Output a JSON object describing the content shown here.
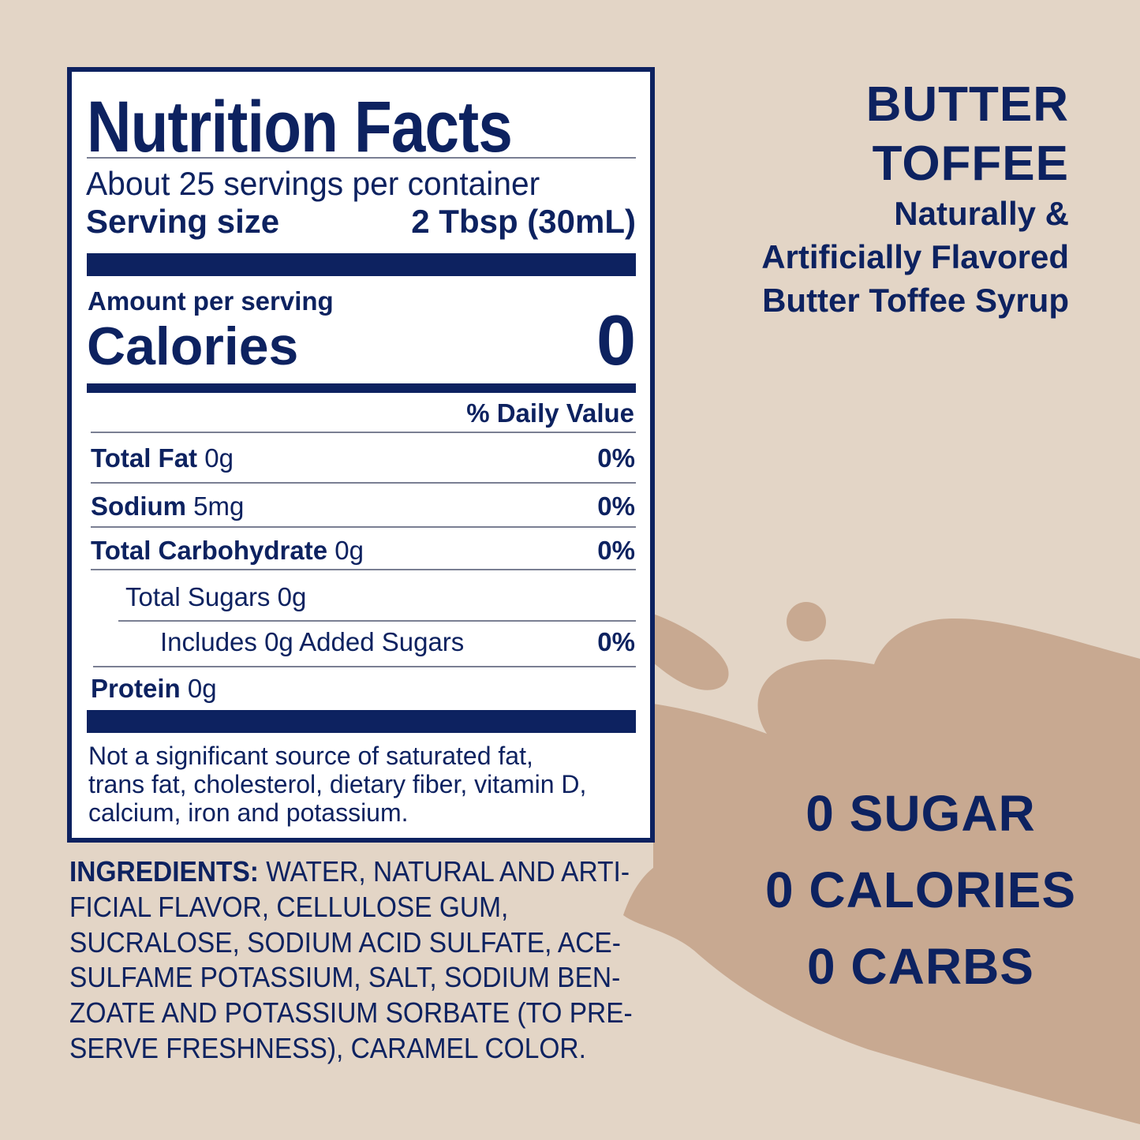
{
  "colors": {
    "background": "#e3d5c6",
    "splash": "#c8a991",
    "navy": "#0d2260"
  },
  "label": {
    "title": "Nutrition Facts",
    "servings": "About 25 servings per container",
    "serving_size_label": "Serving size",
    "serving_size_value": "2 Tbsp (30mL)",
    "amount_per_serving": "Amount per serving",
    "calories_label": "Calories",
    "calories_value": "0",
    "daily_value_header": "% Daily Value",
    "rows": [
      {
        "name": "Total Fat",
        "amount": "0g",
        "dv": "0%"
      },
      {
        "name": "Sodium",
        "amount": "5mg",
        "dv": "0%"
      },
      {
        "name": "Total Carbohydrate",
        "amount": "0g",
        "dv": "0%"
      },
      {
        "name": "",
        "amount": "Total Sugars 0g",
        "dv": ""
      },
      {
        "name": "",
        "amount": "Includes 0g Added Sugars",
        "dv": "0%"
      },
      {
        "name": "Protein",
        "amount": "0g",
        "dv": ""
      }
    ],
    "footnote": [
      "Not a significant source of saturated fat,",
      "trans fat, cholesterol, dietary fiber, vitamin D,",
      "calcium, iron and potassium."
    ]
  },
  "ingredients": {
    "label": "INGREDIENTS:",
    "lines": [
      " WATER, NATURAL AND ARTI-",
      "FICIAL FLAVOR, CELLULOSE GUM,",
      "SUCRALOSE, SODIUM ACID SULFATE, ACE-",
      "SULFAME POTASSIUM,  SALT, SODIUM BEN-",
      "ZOATE AND POTASSIUM SORBATE (TO PRE-",
      "SERVE FRESHNESS), CARAMEL COLOR."
    ]
  },
  "product": {
    "name_lines": [
      "BUTTER",
      "TOFFEE"
    ],
    "description_lines": [
      "Naturally &",
      "Artificially Flavored",
      "Butter Toffee Syrup"
    ]
  },
  "claims": [
    "0 SUGAR",
    "0 CALORIES",
    "0 CARBS"
  ]
}
